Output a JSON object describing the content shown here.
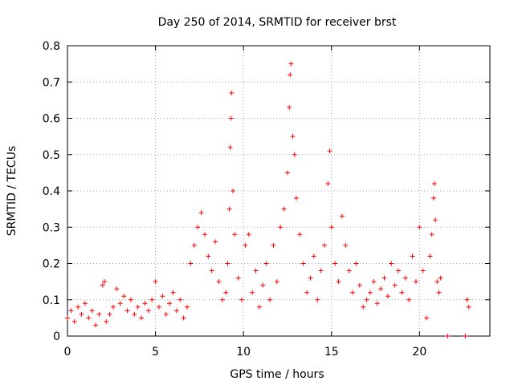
{
  "chart_data": {
    "type": "scatter",
    "title": "Day 250 of 2014, SRMTID for receiver brst",
    "xlabel": "GPS time / hours",
    "ylabel": "SRMTID / TECUs",
    "xlim": [
      0,
      24
    ],
    "ylim": [
      0,
      0.8
    ],
    "x_ticks": [
      0,
      5,
      10,
      15,
      20
    ],
    "x_tick_labels": [
      "0",
      "5",
      "10",
      "15",
      "20"
    ],
    "y_ticks": [
      0,
      0.1,
      0.2,
      0.3,
      0.4,
      0.5,
      0.6,
      0.7,
      0.8
    ],
    "y_tick_labels": [
      "0",
      "0.1",
      "0.2",
      "0.3",
      "0.4",
      "0.5",
      "0.6",
      "0.7",
      "0.8"
    ],
    "grid": true,
    "marker": "+",
    "series": [
      {
        "name": "SRMTID",
        "color": "#ff0000",
        "points": [
          [
            0.0,
            0.05
          ],
          [
            0.2,
            0.07
          ],
          [
            0.4,
            0.04
          ],
          [
            0.6,
            0.08
          ],
          [
            0.8,
            0.06
          ],
          [
            1.0,
            0.09
          ],
          [
            1.2,
            0.05
          ],
          [
            1.4,
            0.07
          ],
          [
            1.6,
            0.03
          ],
          [
            1.8,
            0.06
          ],
          [
            2.0,
            0.14
          ],
          [
            2.1,
            0.15
          ],
          [
            2.2,
            0.04
          ],
          [
            2.4,
            0.06
          ],
          [
            2.6,
            0.08
          ],
          [
            2.8,
            0.13
          ],
          [
            3.0,
            0.09
          ],
          [
            3.2,
            0.11
          ],
          [
            3.4,
            0.07
          ],
          [
            3.6,
            0.1
          ],
          [
            3.8,
            0.06
          ],
          [
            4.0,
            0.08
          ],
          [
            4.2,
            0.05
          ],
          [
            4.4,
            0.09
          ],
          [
            4.6,
            0.07
          ],
          [
            4.8,
            0.1
          ],
          [
            5.0,
            0.15
          ],
          [
            5.2,
            0.08
          ],
          [
            5.4,
            0.11
          ],
          [
            5.6,
            0.06
          ],
          [
            5.8,
            0.09
          ],
          [
            6.0,
            0.12
          ],
          [
            6.2,
            0.07
          ],
          [
            6.4,
            0.1
          ],
          [
            6.6,
            0.05
          ],
          [
            6.8,
            0.08
          ],
          [
            7.0,
            0.2
          ],
          [
            7.2,
            0.25
          ],
          [
            7.4,
            0.3
          ],
          [
            7.6,
            0.34
          ],
          [
            7.8,
            0.28
          ],
          [
            8.0,
            0.22
          ],
          [
            8.2,
            0.18
          ],
          [
            8.4,
            0.26
          ],
          [
            8.6,
            0.15
          ],
          [
            8.8,
            0.1
          ],
          [
            9.0,
            0.12
          ],
          [
            9.1,
            0.2
          ],
          [
            9.2,
            0.35
          ],
          [
            9.25,
            0.52
          ],
          [
            9.3,
            0.6
          ],
          [
            9.32,
            0.67
          ],
          [
            9.4,
            0.4
          ],
          [
            9.5,
            0.28
          ],
          [
            9.7,
            0.16
          ],
          [
            9.9,
            0.1
          ],
          [
            10.1,
            0.25
          ],
          [
            10.3,
            0.28
          ],
          [
            10.5,
            0.12
          ],
          [
            10.7,
            0.18
          ],
          [
            10.9,
            0.08
          ],
          [
            11.1,
            0.14
          ],
          [
            11.3,
            0.2
          ],
          [
            11.5,
            0.1
          ],
          [
            11.7,
            0.25
          ],
          [
            11.9,
            0.15
          ],
          [
            12.1,
            0.3
          ],
          [
            12.3,
            0.35
          ],
          [
            12.5,
            0.45
          ],
          [
            12.6,
            0.63
          ],
          [
            12.65,
            0.72
          ],
          [
            12.7,
            0.75
          ],
          [
            12.8,
            0.55
          ],
          [
            12.9,
            0.5
          ],
          [
            13.0,
            0.38
          ],
          [
            13.2,
            0.28
          ],
          [
            13.4,
            0.2
          ],
          [
            13.6,
            0.12
          ],
          [
            13.8,
            0.16
          ],
          [
            14.0,
            0.22
          ],
          [
            14.2,
            0.1
          ],
          [
            14.4,
            0.18
          ],
          [
            14.6,
            0.25
          ],
          [
            14.8,
            0.42
          ],
          [
            14.9,
            0.51
          ],
          [
            15.0,
            0.3
          ],
          [
            15.2,
            0.2
          ],
          [
            15.4,
            0.15
          ],
          [
            15.6,
            0.33
          ],
          [
            15.8,
            0.25
          ],
          [
            16.0,
            0.18
          ],
          [
            16.2,
            0.12
          ],
          [
            16.4,
            0.2
          ],
          [
            16.6,
            0.14
          ],
          [
            16.8,
            0.08
          ],
          [
            17.0,
            0.1
          ],
          [
            17.2,
            0.12
          ],
          [
            17.4,
            0.15
          ],
          [
            17.6,
            0.09
          ],
          [
            17.8,
            0.13
          ],
          [
            18.0,
            0.16
          ],
          [
            18.2,
            0.11
          ],
          [
            18.4,
            0.2
          ],
          [
            18.6,
            0.14
          ],
          [
            18.8,
            0.18
          ],
          [
            19.0,
            0.12
          ],
          [
            19.2,
            0.16
          ],
          [
            19.4,
            0.1
          ],
          [
            19.6,
            0.22
          ],
          [
            19.8,
            0.15
          ],
          [
            20.0,
            0.3
          ],
          [
            20.2,
            0.18
          ],
          [
            20.4,
            0.05
          ],
          [
            20.6,
            0.22
          ],
          [
            20.7,
            0.28
          ],
          [
            20.8,
            0.38
          ],
          [
            20.85,
            0.42
          ],
          [
            20.9,
            0.32
          ],
          [
            21.0,
            0.15
          ],
          [
            21.1,
            0.12
          ],
          [
            21.2,
            0.16
          ],
          [
            21.6,
            0.0
          ],
          [
            22.6,
            0.0
          ],
          [
            22.7,
            0.1
          ],
          [
            22.8,
            0.08
          ]
        ]
      }
    ]
  }
}
